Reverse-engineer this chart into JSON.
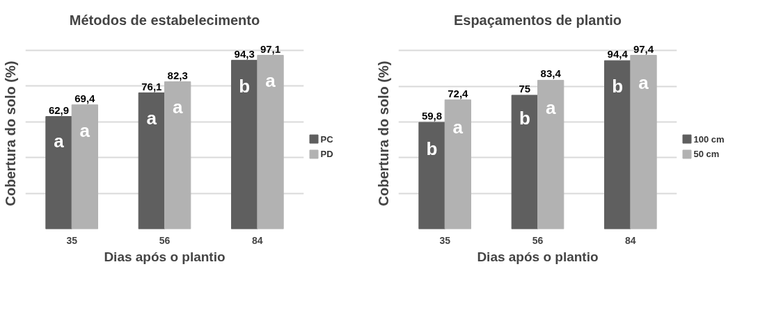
{
  "chart_data": [
    {
      "type": "bar",
      "title": "Métodos de estabelecimento",
      "xlabel": "Dias após o plantio",
      "ylabel": "Cobertura do solo (%)",
      "categories": [
        "35",
        "56",
        "84"
      ],
      "series": [
        {
          "name": "PC",
          "color": "#5f5f5f",
          "values": [
            62.9,
            76.1,
            94.3
          ],
          "value_labels": [
            "62,9",
            "76,1",
            "94,3"
          ]
        },
        {
          "name": "PD",
          "color": "#b2b2b2",
          "values": [
            69.4,
            82.3,
            97.1
          ],
          "value_labels": [
            "69,4",
            "82,3",
            "97,1"
          ]
        }
      ],
      "tick_labels": "x",
      "grid": "y",
      "legend": "right",
      "annotations": [
        {
          "text": "a",
          "x": "35",
          "y": 49
        },
        {
          "text": "a",
          "x": "35",
          "y": 55
        },
        {
          "text": "a",
          "x": "56",
          "y": 62
        },
        {
          "text": "a",
          "x": "56",
          "y": 68
        },
        {
          "text": "b",
          "x": "84",
          "y": 80
        },
        {
          "text": "a",
          "x": "84",
          "y": 83
        }
      ]
    },
    {
      "type": "bar",
      "title": "Espaçamentos de plantio",
      "xlabel": "Dias após o plantio",
      "ylabel": "Cobertura do solo (%)",
      "categories": [
        "35",
        "56",
        "84"
      ],
      "series": [
        {
          "name": "100 cm",
          "color": "#5f5f5f",
          "values": [
            59.8,
            75,
            94.4
          ],
          "value_labels": [
            "59,8",
            "75",
            "94,4"
          ]
        },
        {
          "name": "50 cm",
          "color": "#b2b2b2",
          "values": [
            72.4,
            83.4,
            97.4
          ],
          "value_labels": [
            "72,4",
            "83,4",
            "97,4"
          ]
        }
      ],
      "tick_labels": "x",
      "grid": "y",
      "legend": "right",
      "annotations": [
        {
          "text": "b",
          "x": "35",
          "y": 45
        },
        {
          "text": "a",
          "x": "35",
          "y": 57
        },
        {
          "text": "b",
          "x": "56",
          "y": 62
        },
        {
          "text": "a",
          "x": "56",
          "y": 68
        },
        {
          "text": "b",
          "x": "84",
          "y": 80
        },
        {
          "text": "a",
          "x": "84",
          "y": 82
        }
      ]
    }
  ]
}
